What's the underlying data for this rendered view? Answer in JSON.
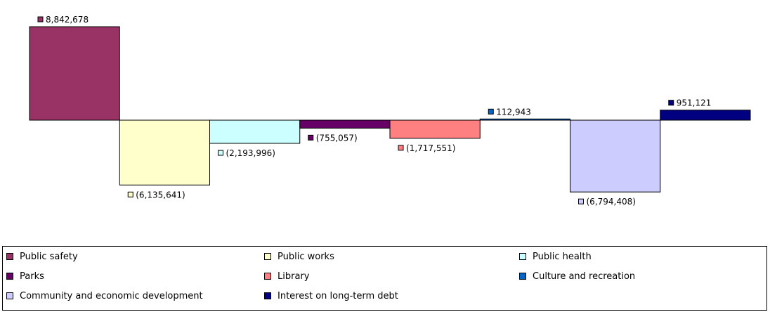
{
  "chart_data": {
    "type": "bar",
    "variant": "waterfall",
    "title": "",
    "xlabel": "",
    "ylabel": "",
    "grid": false,
    "legend_position": "bottom",
    "categories": [
      "Public safety",
      "Public works",
      "Public health",
      "Parks",
      "Library",
      "Culture and recreation",
      "Community and economic development",
      "Interest on long-term debt"
    ],
    "values": [
      8842678,
      -6135641,
      -2193996,
      -755057,
      -1717551,
      112943,
      -6794408,
      951121
    ],
    "data_labels": [
      "8,842,678",
      "(6,135,641)",
      "(2,193,996)",
      "(755,057)",
      "(1,717,551)",
      "112,943",
      "(6,794,408)",
      "951,121"
    ],
    "colors": [
      "#993366",
      "#FFFFCC",
      "#CCFFFF",
      "#660066",
      "#FF8080",
      "#0066CC",
      "#CCCCFF",
      "#000080"
    ],
    "ylim": [
      -6794408,
      8842678
    ]
  }
}
